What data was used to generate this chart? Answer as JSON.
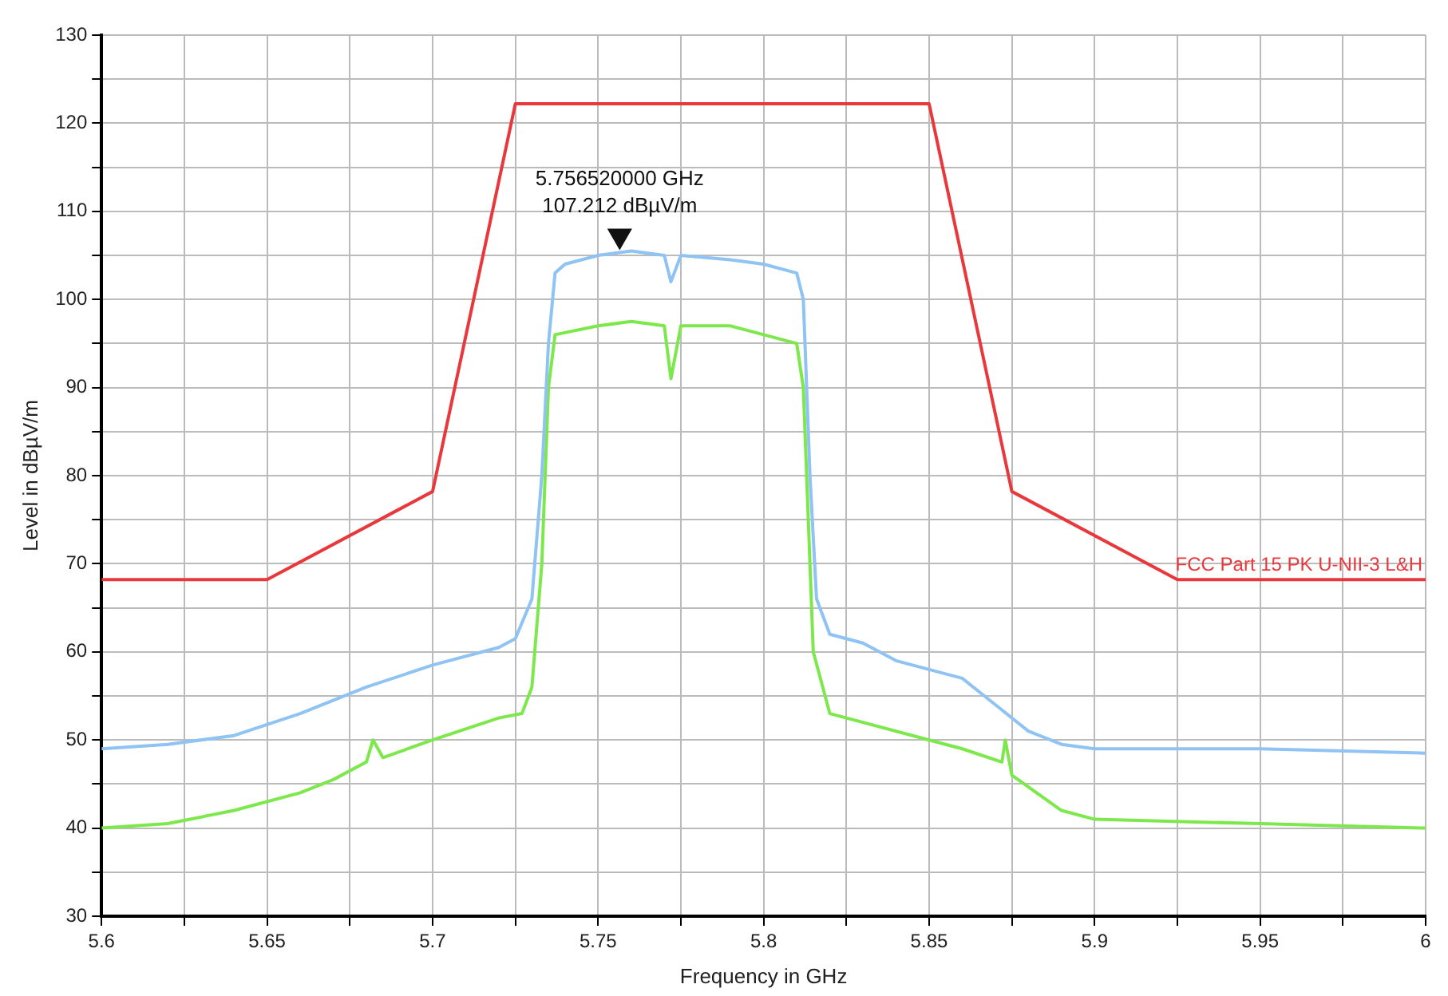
{
  "chart_data": {
    "type": "line",
    "xlabel": "Frequency in GHz",
    "ylabel": "Level in dBµV/m",
    "xlim": [
      5.6,
      6
    ],
    "ylim": [
      30,
      130
    ],
    "xticks": [
      5.6,
      {
        "value": 5.625,
        "label": null
      },
      5.65,
      {
        "value": 5.675,
        "label": null
      },
      5.7,
      {
        "value": 5.725,
        "label": null
      },
      5.75,
      {
        "value": 5.775,
        "label": null
      },
      5.8,
      {
        "value": 5.825,
        "label": null
      },
      5.85,
      {
        "value": 5.875,
        "label": null
      },
      5.9,
      {
        "value": 5.925,
        "label": null
      },
      5.95,
      {
        "value": 5.975,
        "label": null
      },
      6
    ],
    "yticks": [
      30,
      {
        "value": 35,
        "label": null
      },
      40,
      {
        "value": 45,
        "label": null
      },
      50,
      {
        "value": 55,
        "label": null
      },
      60,
      {
        "value": 65,
        "label": null
      },
      70,
      {
        "value": 75,
        "label": null
      },
      80,
      {
        "value": 85,
        "label": null
      },
      90,
      {
        "value": 95,
        "label": null
      },
      100,
      {
        "value": 105,
        "label": null
      },
      110,
      {
        "value": 115,
        "label": null
      },
      120,
      {
        "value": 125,
        "label": null
      },
      130
    ],
    "grid": true,
    "legend": false,
    "marker": "none",
    "line_style": "solid",
    "series": [
      {
        "name": "FCC Part 15 PK U-NII-3 L&H",
        "color": "#e8383c",
        "x": [
          5.6,
          5.65,
          5.7,
          5.725,
          5.85,
          5.875,
          5.925,
          6
        ],
        "values": [
          68.2,
          68.2,
          78.2,
          122.2,
          122.2,
          78.2,
          68.2,
          68.2
        ]
      },
      {
        "color": "#8ec3f3",
        "x": [
          5.6,
          5.62,
          5.64,
          5.66,
          5.68,
          5.7,
          5.72,
          5.725,
          5.73,
          5.733,
          5.735,
          5.737,
          5.74,
          5.75,
          5.76,
          5.77,
          5.772,
          5.775,
          5.79,
          5.8,
          5.81,
          5.812,
          5.814,
          5.816,
          5.82,
          5.83,
          5.84,
          5.85,
          5.86,
          5.87,
          5.88,
          5.89,
          5.9,
          5.95,
          6
        ],
        "values": [
          49,
          49.5,
          50.5,
          53,
          56,
          58.5,
          60.5,
          61.5,
          66,
          80,
          95,
          103,
          104,
          105,
          105.5,
          105,
          102,
          105,
          104.5,
          104,
          103,
          100,
          80,
          66,
          62,
          61,
          59,
          58,
          57,
          54,
          51,
          49.5,
          49,
          49,
          48.5
        ]
      },
      {
        "type": "scatter",
        "marker": "triangle",
        "color": "#111111",
        "x": [
          5.75652
        ],
        "values": [
          107.212
        ],
        "value_labels": [
          "5.756520000 GHz\n107.212 dBµV/m"
        ]
      },
      {
        "color": "#7de84c",
        "x": [
          5.6,
          5.62,
          5.64,
          5.66,
          5.67,
          5.68,
          5.682,
          5.685,
          5.7,
          5.72,
          5.727,
          5.73,
          5.733,
          5.735,
          5.737,
          5.75,
          5.76,
          5.77,
          5.772,
          5.775,
          5.79,
          5.8,
          5.81,
          5.812,
          5.815,
          5.82,
          5.83,
          5.85,
          5.86,
          5.872,
          5.873,
          5.875,
          5.89,
          5.9,
          5.95,
          6
        ],
        "values": [
          40,
          40.5,
          42,
          44,
          45.5,
          47.5,
          50,
          48,
          50,
          52.5,
          53,
          56,
          70,
          90,
          96,
          97,
          97.5,
          97,
          91,
          97,
          97,
          96,
          95,
          90,
          60,
          53,
          52,
          50,
          49,
          47.5,
          50,
          46,
          42,
          41,
          40.5,
          40
        ]
      }
    ]
  }
}
